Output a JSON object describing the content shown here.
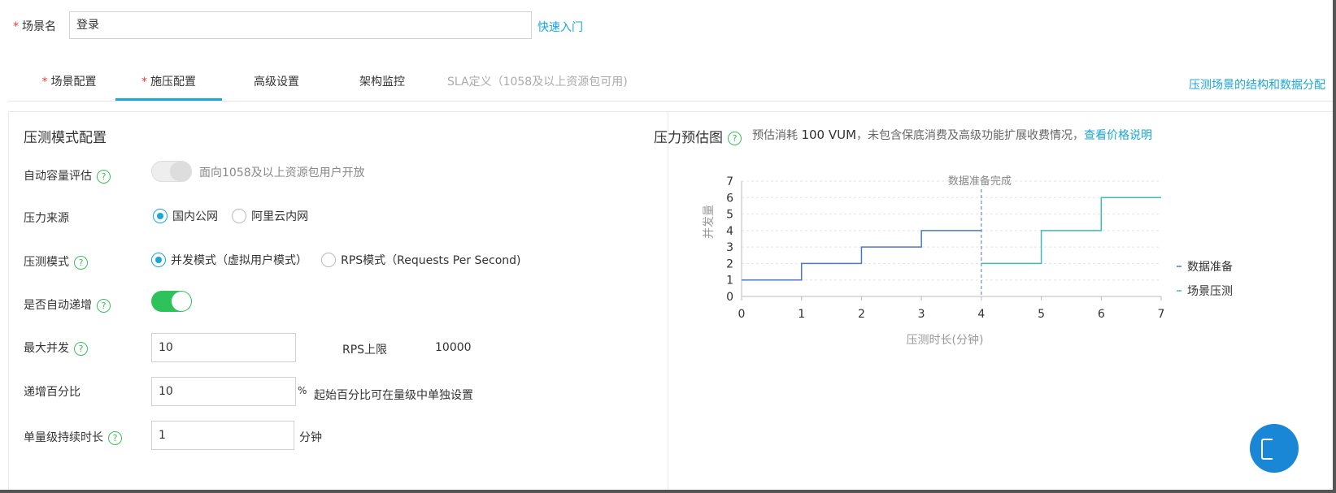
{
  "scene": {
    "label": "场景名",
    "value": "登录",
    "quick_start": "快速入门"
  },
  "tabs": [
    {
      "label": "场景配置",
      "required": true
    },
    {
      "label": "施压配置",
      "required": true,
      "active": true
    },
    {
      "label": "高级设置"
    },
    {
      "label": "架构监控"
    },
    {
      "label": "SLA定义（1058及以上资源包可用)",
      "disabled": true
    }
  ],
  "tabs_right_link": "压测场景的结构和数据分配",
  "left": {
    "title": "压测模式配置",
    "auto_capacity": {
      "label": "自动容量评估",
      "hint": "面向1058及以上资源包用户开放",
      "on": false
    },
    "source": {
      "label": "压力来源",
      "options": [
        "国内公网",
        "阿里云内网"
      ],
      "selected": 0
    },
    "mode": {
      "label": "压测模式",
      "options": [
        "并发模式（虚拟用户模式）",
        "RPS模式（Requests Per Second)"
      ],
      "selected": 0
    },
    "auto_increase": {
      "label": "是否自动递增",
      "on": true
    },
    "max_concurrency": {
      "label": "最大并发",
      "value": "10",
      "rps_label": "RPS上限",
      "rps_value": "10000"
    },
    "increase_pct": {
      "label": "递增百分比",
      "value": "10",
      "unit": "%",
      "note": "起始百分比可在量级中单独设置"
    },
    "level_duration": {
      "label": "单量级持续时长",
      "value": "1",
      "unit": "分钟"
    }
  },
  "right": {
    "title": "压力预估图",
    "estimate_prefix": "预估消耗",
    "estimate_value": "100 VUM",
    "estimate_suffix": "，未包含保底消费及高级功能扩展收费情况，",
    "price_link": "查看价格说明"
  },
  "icons": {
    "help": "help-circle-icon",
    "fab": "app-grid-icon"
  },
  "colors": {
    "accent": "#1aa6d6",
    "toggle_on": "#2ec25a",
    "series_prep": "#4a77c9",
    "series_load": "#3cbcb4"
  },
  "chart_data": {
    "type": "line",
    "step": true,
    "ylabel": "并发量",
    "xlabel": "压测时长(分钟)",
    "xlim": [
      0,
      7
    ],
    "ylim": [
      0,
      7
    ],
    "xticks": [
      0,
      1,
      2,
      3,
      4,
      5,
      6,
      7
    ],
    "yticks": [
      0,
      1,
      2,
      3,
      4,
      5,
      6,
      7
    ],
    "grid": true,
    "legend": "right",
    "annotation": {
      "x": 4,
      "text": "数据准备完成"
    },
    "series": [
      {
        "name": "数据准备",
        "color": "#4a77c9",
        "points": [
          [
            0,
            1
          ],
          [
            1,
            1
          ],
          [
            1,
            2
          ],
          [
            2,
            2
          ],
          [
            2,
            3
          ],
          [
            3,
            3
          ],
          [
            3,
            4
          ],
          [
            4,
            4
          ]
        ]
      },
      {
        "name": "场景压测",
        "color": "#3cbcb4",
        "points": [
          [
            4,
            2
          ],
          [
            5,
            2
          ],
          [
            5,
            4
          ],
          [
            6,
            4
          ],
          [
            6,
            6
          ],
          [
            7,
            6
          ]
        ]
      }
    ]
  }
}
